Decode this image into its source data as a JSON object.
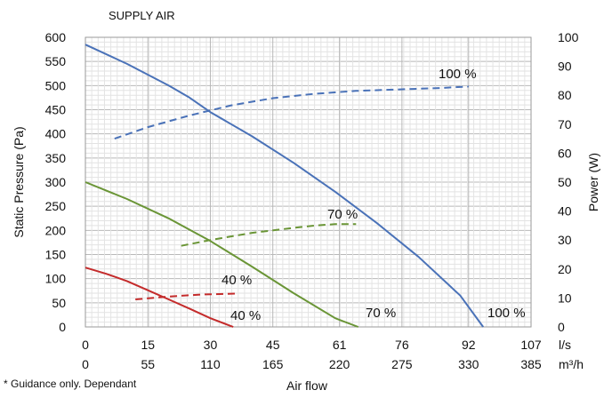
{
  "chart_data": {
    "type": "line",
    "title": "SUPPLY AIR",
    "footnote": "* Guidance only. Dependant",
    "xlabel": "Air flow",
    "ylabel_left": "Static Pressure (Pa)",
    "ylabel_right": "Power (W)",
    "x_units": "l/s",
    "x2_units": "m³/h",
    "xlim": [
      0,
      107
    ],
    "ylim_left": [
      0,
      600
    ],
    "ylim_right": [
      0,
      100
    ],
    "x_ticks": [
      0,
      15,
      30,
      45,
      61,
      76,
      92,
      107
    ],
    "x2_ticks": [
      0,
      55,
      110,
      165,
      220,
      275,
      330,
      385
    ],
    "y_left_ticks": [
      0,
      50,
      100,
      150,
      200,
      250,
      300,
      350,
      400,
      450,
      500,
      550,
      600
    ],
    "y_right_ticks": [
      0,
      10,
      20,
      30,
      40,
      50,
      60,
      70,
      80,
      90,
      100
    ],
    "grid": true,
    "series": [
      {
        "name": "100 %",
        "label": "100 %",
        "axis": "left",
        "style": "solid",
        "color": "#4a72b8",
        "x": [
          0,
          10,
          20,
          25,
          30,
          40,
          50,
          60,
          70,
          80,
          90,
          95.5
        ],
        "y": [
          585,
          545,
          500,
          475,
          445,
          395,
          340,
          280,
          215,
          145,
          65,
          0
        ]
      },
      {
        "name": "70 %",
        "label": "70 %",
        "axis": "left",
        "style": "solid",
        "color": "#6a9536",
        "x": [
          0,
          10,
          20,
          30,
          40,
          50,
          60,
          65.5
        ],
        "y": [
          300,
          265,
          225,
          178,
          125,
          70,
          18,
          0
        ]
      },
      {
        "name": "40 %",
        "label": "40 %",
        "axis": "left",
        "style": "solid",
        "color": "#c42b2b",
        "x": [
          0,
          5,
          10,
          15,
          20,
          25,
          30,
          35.5
        ],
        "y": [
          123,
          110,
          95,
          76,
          57,
          38,
          18,
          0
        ]
      },
      {
        "name": "100 %",
        "label": "100 %",
        "axis": "right",
        "style": "dashed",
        "color": "#4a72b8",
        "x": [
          7,
          15,
          25,
          35,
          45,
          55,
          65,
          75,
          85,
          92
        ],
        "y": [
          65,
          69,
          73,
          76.5,
          79,
          80.5,
          81.5,
          82,
          82.5,
          83
        ]
      },
      {
        "name": "70 %",
        "label": "70 %",
        "axis": "right",
        "style": "dashed",
        "color": "#6a9536",
        "x": [
          23,
          30,
          40,
          50,
          55,
          60,
          65
        ],
        "y": [
          28,
          30,
          32.5,
          34.2,
          35,
          35.5,
          35.5
        ]
      },
      {
        "name": "40 %",
        "label": "40 %",
        "axis": "right",
        "style": "dashed",
        "color": "#c42b2b",
        "x": [
          12,
          20,
          28,
          36
        ],
        "y": [
          9.5,
          10.5,
          11.2,
          11.5
        ]
      }
    ]
  }
}
